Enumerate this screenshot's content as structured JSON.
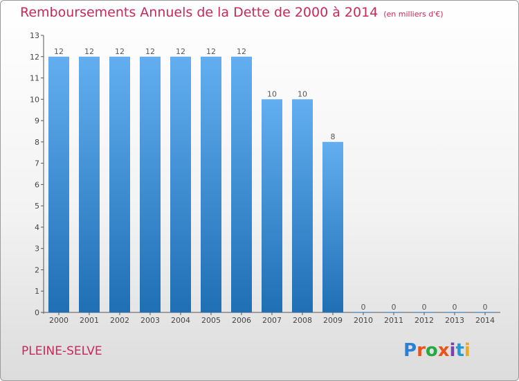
{
  "header": {
    "title": "Remboursements Annuels de la Dette de 2000 à 2014",
    "unit": "(en milliers d'€)"
  },
  "footer": {
    "commune": "PLEINE-SELVE",
    "logo_letters": [
      "P",
      "r",
      "o",
      "x",
      "i",
      "t",
      "i"
    ],
    "logo_colors": [
      "#2a7fd6",
      "#e8541c",
      "#27a844",
      "#e8541c",
      "#7b3fb0",
      "#1f9bd6",
      "#f0a81c"
    ]
  },
  "colors": {
    "bar_top": "#62aef0",
    "bar_bottom": "#1f6fb5",
    "title": "#c8285a",
    "grid": "#d8d8d8"
  },
  "chart_data": {
    "type": "bar",
    "title": "Remboursements Annuels de la Dette de 2000 à 2014",
    "xlabel": "",
    "ylabel": "",
    "categories": [
      "2000",
      "2001",
      "2002",
      "2003",
      "2004",
      "2005",
      "2006",
      "2007",
      "2008",
      "2009",
      "2010",
      "2011",
      "2012",
      "2013",
      "2014"
    ],
    "values": [
      12,
      12,
      12,
      12,
      12,
      12,
      12,
      10,
      10,
      8,
      0,
      0,
      0,
      0,
      0
    ],
    "ylim": [
      0,
      13
    ],
    "yticks": [
      0,
      1,
      2,
      3,
      4,
      5,
      6,
      7,
      8,
      9,
      10,
      11,
      12,
      13
    ],
    "grid": false,
    "legend": "none"
  }
}
